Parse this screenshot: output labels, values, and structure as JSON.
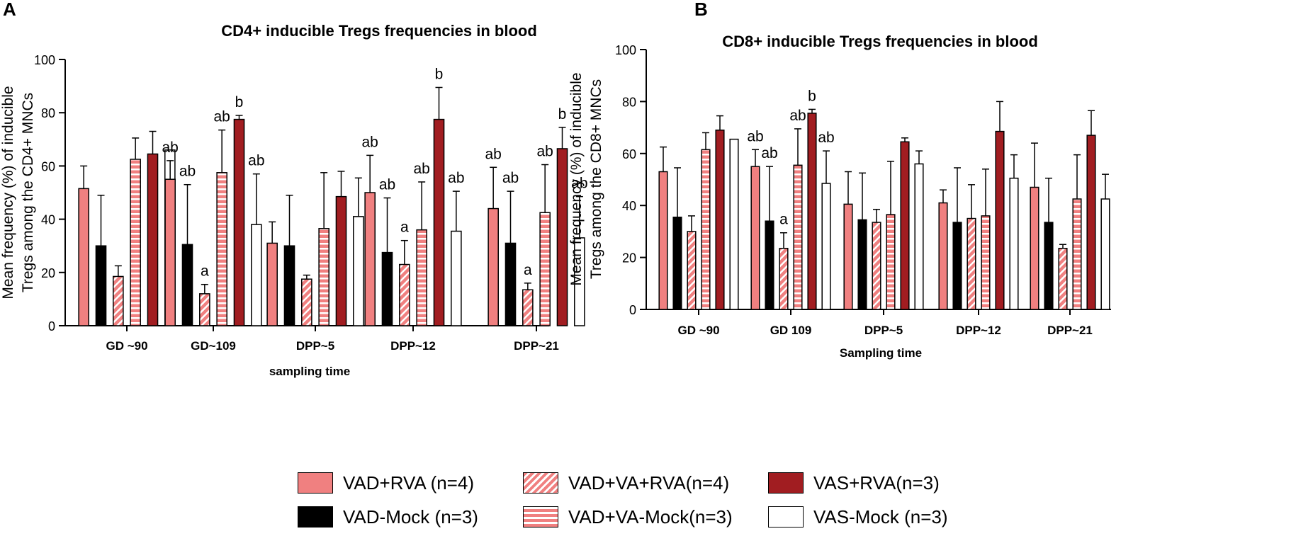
{
  "colors": {
    "salmon": "#f08080",
    "black": "#000000",
    "dark_red": "#a11d21",
    "white": "#ffffff"
  },
  "legend": [
    {
      "label": "VAD+RVA (n=4)",
      "pattern": "solid"
    },
    {
      "label": "VAD-Mock (n=3)",
      "pattern": "black"
    },
    {
      "label": "VAD+VA+RVA(n=4)",
      "pattern": "diag"
    },
    {
      "label": "VAD+VA-Mock(n=3)",
      "pattern": "horiz"
    },
    {
      "label": "VAS+RVA(n=3)",
      "pattern": "dark"
    },
    {
      "label": "VAS-Mock (n=3)",
      "pattern": "white"
    }
  ],
  "chart_data": [
    {
      "panel": "A",
      "type": "bar",
      "title": "CD4+ inducible Tregs frequencies in blood",
      "xlabel": "sampling time",
      "ylabel": "Mean frequency (%) of inducible Tregs among the CD4+ MNCs",
      "ylim": [
        0,
        100
      ],
      "yticks": [
        0,
        20,
        40,
        60,
        80,
        100
      ],
      "categories": [
        "GD ~90",
        "GD~109",
        "DPP~5",
        "DPP~12",
        "DPP~21"
      ],
      "series": [
        {
          "name": "VAD+RVA (n=4)",
          "values": [
            51.5,
            55,
            31,
            50,
            44
          ],
          "errors": [
            8.5,
            7,
            8,
            14,
            15.5
          ],
          "letters": [
            "",
            "ab",
            "",
            "ab",
            "ab"
          ]
        },
        {
          "name": "VAD-Mock (n=3)",
          "values": [
            30,
            30.5,
            30,
            27.5,
            31
          ],
          "errors": [
            19,
            22.5,
            19,
            20.5,
            19.5
          ],
          "letters": [
            "",
            "ab",
            "",
            "ab",
            "ab"
          ]
        },
        {
          "name": "VAD+VA+RVA(n=4)",
          "values": [
            18.5,
            12,
            17.5,
            23,
            13.5
          ],
          "errors": [
            4,
            3.5,
            1.5,
            9,
            2.5
          ],
          "letters": [
            "",
            "a",
            "",
            "a",
            "a"
          ]
        },
        {
          "name": "VAD+VA-Mock(n=3)",
          "values": [
            62.5,
            57.5,
            36.5,
            36,
            42.5
          ],
          "errors": [
            8,
            16,
            21,
            18,
            18
          ],
          "letters": [
            "",
            "ab",
            "",
            "ab",
            "ab"
          ]
        },
        {
          "name": "VAS+RVA(n=3)",
          "values": [
            64.5,
            77.5,
            48.5,
            77.5,
            66.5
          ],
          "errors": [
            8.5,
            1.5,
            9.5,
            12,
            8
          ],
          "letters": [
            "",
            "b",
            "",
            "b",
            "b"
          ]
        },
        {
          "name": "VAS-Mock (n=3)",
          "values": [
            66,
            38,
            41,
            35.5,
            33
          ],
          "errors": [
            0,
            19,
            14.5,
            15,
            15.5
          ],
          "letters": [
            "",
            "ab",
            "",
            "ab",
            "ab"
          ]
        }
      ]
    },
    {
      "panel": "B",
      "type": "bar",
      "title": "CD8+ inducible Tregs frequencies in blood",
      "xlabel": "Sampling time",
      "ylabel": "Mean frequency (%) of inducible Tregs among the CD8+ MNCs",
      "ylim": [
        0,
        100
      ],
      "yticks": [
        0,
        20,
        40,
        60,
        80,
        100
      ],
      "categories": [
        "GD ~90",
        "GD 109",
        "DPP~5",
        "DPP~12",
        "DPP~21"
      ],
      "series": [
        {
          "name": "VAD+RVA (n=4)",
          "values": [
            53,
            55,
            40.5,
            41,
            47
          ],
          "errors": [
            9.5,
            6.5,
            12.5,
            5,
            17
          ],
          "letters": [
            "",
            "ab",
            "",
            "",
            ""
          ]
        },
        {
          "name": "VAD-Mock (n=3)",
          "values": [
            35.5,
            34,
            34.5,
            33.5,
            33.5
          ],
          "errors": [
            19,
            21,
            18,
            21,
            17
          ],
          "letters": [
            "",
            "ab",
            "",
            "",
            ""
          ]
        },
        {
          "name": "VAD+VA+RVA(n=4)",
          "values": [
            30,
            23.5,
            33.5,
            35,
            23.5
          ],
          "errors": [
            6,
            6,
            5,
            13,
            1.5
          ],
          "letters": [
            "",
            "a",
            "",
            "",
            ""
          ]
        },
        {
          "name": "VAD+VA-Mock(n=3)",
          "values": [
            61.5,
            55.5,
            36.5,
            36,
            42.5
          ],
          "errors": [
            6.5,
            14,
            20.5,
            18,
            17
          ],
          "letters": [
            "",
            "ab",
            "",
            "",
            ""
          ]
        },
        {
          "name": "VAS+RVA(n=3)",
          "values": [
            69,
            75.5,
            64.5,
            68.5,
            67
          ],
          "errors": [
            5.5,
            1.5,
            1.5,
            11.5,
            9.5
          ],
          "letters": [
            "",
            "b",
            "",
            "",
            ""
          ]
        },
        {
          "name": "VAS-Mock (n=3)",
          "values": [
            65.5,
            48.5,
            56,
            50.5,
            42.5
          ],
          "errors": [
            0,
            12.5,
            5,
            9,
            9.5
          ],
          "letters": [
            "",
            "ab",
            "",
            "",
            ""
          ]
        }
      ]
    }
  ]
}
